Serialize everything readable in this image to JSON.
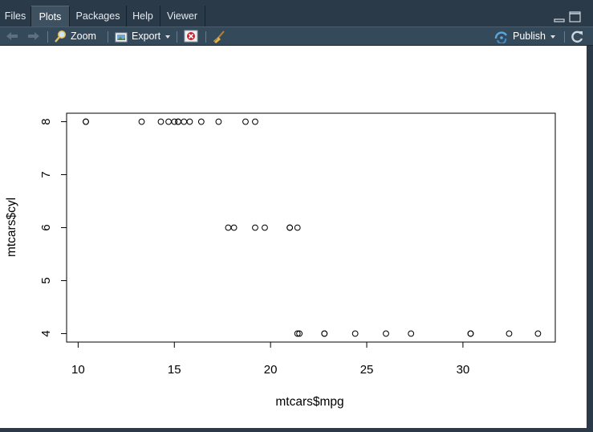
{
  "tabs": [
    {
      "label": "Files",
      "active": false
    },
    {
      "label": "Plots",
      "active": true
    },
    {
      "label": "Packages",
      "active": false
    },
    {
      "label": "Help",
      "active": false
    },
    {
      "label": "Viewer",
      "active": false
    }
  ],
  "toolbar": {
    "zoom_label": "Zoom",
    "export_label": "Export",
    "publish_label": "Publish"
  },
  "icons": {
    "back": "arrow-left-icon",
    "forward": "arrow-right-icon",
    "zoom": "magnifier-icon",
    "export": "image-export-icon",
    "remove": "remove-plot-icon",
    "clear": "broom-icon",
    "publish": "publish-icon",
    "refresh": "refresh-icon",
    "minimize": "minimize-icon",
    "maximize": "maximize-icon"
  },
  "chart_data": {
    "type": "scatter",
    "title": "",
    "xlabel": "mtcars$mpg",
    "ylabel": "mtcars$cyl",
    "xlim": [
      9.4,
      34.8
    ],
    "ylim": [
      3.84,
      8.16
    ],
    "xticks": [
      10,
      15,
      20,
      25,
      30
    ],
    "yticks": [
      4,
      5,
      6,
      7,
      8
    ],
    "x": [
      21.0,
      21.0,
      22.8,
      21.4,
      18.7,
      18.1,
      14.3,
      24.4,
      22.8,
      19.2,
      17.8,
      16.4,
      17.3,
      15.2,
      10.4,
      10.4,
      14.7,
      32.4,
      30.4,
      33.9,
      21.5,
      15.5,
      15.2,
      13.3,
      19.2,
      27.3,
      26.0,
      30.4,
      15.8,
      19.7,
      15.0,
      21.4
    ],
    "y": [
      6,
      6,
      4,
      6,
      8,
      6,
      8,
      4,
      4,
      6,
      6,
      8,
      8,
      8,
      8,
      8,
      8,
      4,
      4,
      4,
      4,
      8,
      8,
      8,
      8,
      4,
      4,
      4,
      8,
      6,
      8,
      4
    ],
    "grid": false,
    "marker": "open-circle"
  }
}
